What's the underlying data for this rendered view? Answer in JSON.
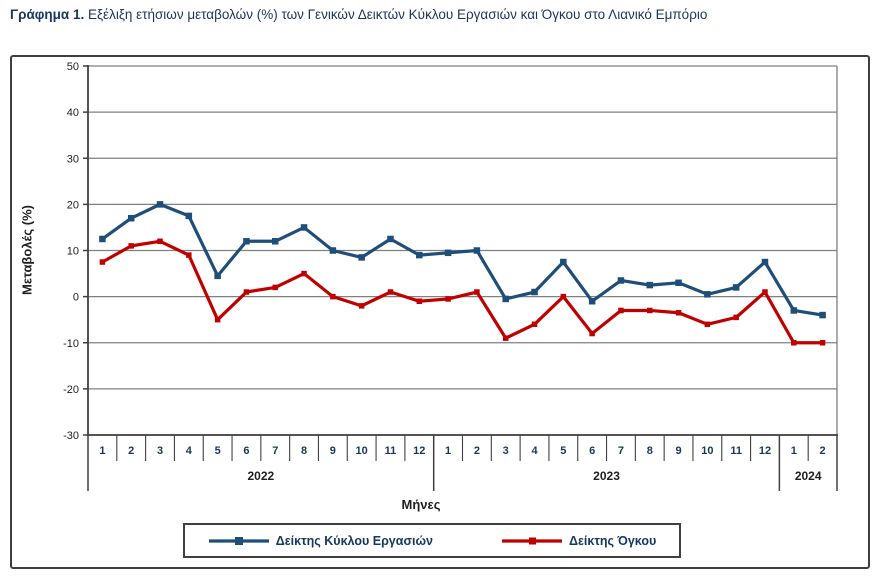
{
  "title": {
    "prefix": "Γράφημα 1.",
    "text": " Εξέλιξη ετήσιων μεταβολών (%) των Γενικών Δεικτών Κύκλου Εργασιών και Όγκου στο Λιανικό Εμπόριο"
  },
  "chart_data": {
    "type": "line",
    "title": "",
    "xlabel": "Μήνες",
    "ylabel": "Μεταβολές  (%)",
    "ylim": [
      -30,
      50
    ],
    "ytick_step": 10,
    "grid": true,
    "legend_position": "bottom",
    "years": [
      {
        "label": "2022",
        "months": [
          "1",
          "2",
          "3",
          "4",
          "5",
          "6",
          "7",
          "8",
          "9",
          "10",
          "11",
          "12"
        ]
      },
      {
        "label": "2023",
        "months": [
          "1",
          "2",
          "3",
          "4",
          "5",
          "6",
          "7",
          "8",
          "9",
          "10",
          "11",
          "12"
        ]
      },
      {
        "label": "2024",
        "months": [
          "1",
          "2"
        ]
      }
    ],
    "series": [
      {
        "name": "Δείκτης Κύκλου Εργασιών",
        "color": "#1F4E79",
        "values": [
          12.5,
          17,
          20,
          17.5,
          4.5,
          12,
          12,
          15,
          10,
          8.5,
          12.5,
          9,
          9.5,
          10,
          -0.5,
          1,
          7.5,
          -1,
          3.5,
          2.5,
          3,
          0.5,
          2,
          7.5,
          -3,
          -4
        ]
      },
      {
        "name": "Δείκτης Όγκου",
        "color": "#C00000",
        "values": [
          7.5,
          11,
          12,
          9,
          -5,
          1,
          2,
          5,
          0,
          -2,
          1,
          -1,
          -0.5,
          1,
          -9,
          -6,
          0,
          -8,
          -3,
          -3,
          -3.5,
          -6,
          -4.5,
          1,
          -10,
          -10
        ]
      }
    ],
    "colors": {
      "gridline": "#808080",
      "axis": "#404040",
      "tick_label": "#1f1f1f",
      "month_label": "#17375E",
      "year_label": "#1f1f1f"
    }
  }
}
